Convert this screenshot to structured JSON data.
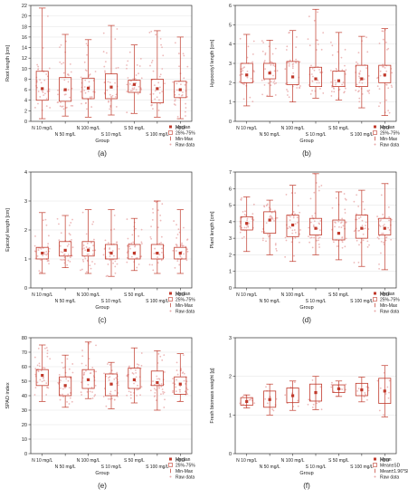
{
  "figure": {
    "colors": {
      "box": "#c0392b",
      "raw": "#e8a8a8",
      "axis": "#333333",
      "grid": "#e6e6e6",
      "text": "#222222"
    }
  },
  "chart_data": [
    {
      "type": "boxplot",
      "panel_label": "(a)",
      "ylabel": "Root length [cm]",
      "xlabel": "Group",
      "ylim": [
        0,
        22
      ],
      "yticks": [
        0,
        2,
        4,
        6,
        8,
        10,
        12,
        14,
        16,
        18,
        20,
        22
      ],
      "categories": [
        "N 10 mg/L",
        "N 50 mg/L",
        "N 100 mg/L",
        "S 10 mg/L",
        "S 50 mg/L",
        "S 100 mg/L",
        "H2O"
      ],
      "legend": [
        "Median",
        "25%-75%",
        "Min-Max",
        "Raw data"
      ],
      "stats": [
        {
          "min": 0.5,
          "q1": 4.0,
          "median": 6.2,
          "q3": 9.5,
          "max": 21.5
        },
        {
          "min": 1.0,
          "q1": 3.8,
          "median": 6.0,
          "q3": 8.3,
          "max": 16.5
        },
        {
          "min": 0.8,
          "q1": 4.3,
          "median": 6.3,
          "q3": 8.2,
          "max": 15.5
        },
        {
          "min": 1.2,
          "q1": 4.3,
          "median": 6.5,
          "q3": 9.0,
          "max": 18.2
        },
        {
          "min": 1.5,
          "q1": 5.5,
          "median": 7.0,
          "q3": 7.8,
          "max": 14.5
        },
        {
          "min": 0.8,
          "q1": 3.5,
          "median": 6.2,
          "q3": 8.0,
          "max": 17.2
        },
        {
          "min": 0.5,
          "q1": 4.5,
          "median": 6.0,
          "q3": 7.6,
          "max": 16.0
        }
      ]
    },
    {
      "type": "boxplot",
      "panel_label": "(b)",
      "ylabel": "Hypocotyl length [cm]",
      "xlabel": "Group",
      "ylim": [
        0,
        6
      ],
      "yticks": [
        0,
        1,
        2,
        3,
        4,
        5,
        6
      ],
      "categories": [
        "N 10 mg/L",
        "N 50 mg/L",
        "N 100 mg/L",
        "S 10 mg/L",
        "S 50 mg/L",
        "S 100 mg/L",
        "H2O"
      ],
      "legend": [
        "Median",
        "25%-75%",
        "Min-Max",
        "Raw data"
      ],
      "stats": [
        {
          "min": 0.8,
          "q1": 2.0,
          "median": 2.4,
          "q3": 3.0,
          "max": 4.5
        },
        {
          "min": 1.3,
          "q1": 2.2,
          "median": 2.5,
          "q3": 3.0,
          "max": 4.2
        },
        {
          "min": 1.0,
          "q1": 1.9,
          "median": 2.3,
          "q3": 3.1,
          "max": 4.7
        },
        {
          "min": 1.2,
          "q1": 1.8,
          "median": 2.2,
          "q3": 2.8,
          "max": 5.8
        },
        {
          "min": 1.1,
          "q1": 1.8,
          "median": 2.1,
          "q3": 2.6,
          "max": 4.6
        },
        {
          "min": 0.7,
          "q1": 1.8,
          "median": 2.2,
          "q3": 2.9,
          "max": 4.4
        },
        {
          "min": 0.3,
          "q1": 2.0,
          "median": 2.4,
          "q3": 2.9,
          "max": 4.8
        }
      ]
    },
    {
      "type": "boxplot",
      "panel_label": "(c)",
      "ylabel": "Epicotyl length [cm]",
      "xlabel": "Group",
      "ylim": [
        0,
        4
      ],
      "yticks": [
        0,
        1,
        2,
        3,
        4
      ],
      "categories": [
        "N 10 mg/L",
        "N 50 mg/L",
        "N 100 mg/L",
        "S 10 mg/L",
        "S 50 mg/L",
        "S 100 mg/L",
        "H2O"
      ],
      "legend": [
        "Median",
        "25%-75%",
        "Min-Max",
        "Raw data"
      ],
      "stats": [
        {
          "min": 0.5,
          "q1": 1.0,
          "median": 1.2,
          "q3": 1.4,
          "max": 2.6
        },
        {
          "min": 0.7,
          "q1": 1.1,
          "median": 1.3,
          "q3": 1.6,
          "max": 2.5
        },
        {
          "min": 0.5,
          "q1": 1.1,
          "median": 1.3,
          "q3": 1.6,
          "max": 2.7
        },
        {
          "min": 0.4,
          "q1": 1.0,
          "median": 1.2,
          "q3": 1.5,
          "max": 2.7
        },
        {
          "min": 0.6,
          "q1": 1.0,
          "median": 1.2,
          "q3": 1.5,
          "max": 2.4
        },
        {
          "min": 0.5,
          "q1": 1.0,
          "median": 1.2,
          "q3": 1.5,
          "max": 3.0
        },
        {
          "min": 0.5,
          "q1": 1.0,
          "median": 1.2,
          "q3": 1.4,
          "max": 2.7
        }
      ]
    },
    {
      "type": "boxplot",
      "panel_label": "(d)",
      "ylabel": "Plant length [cm]",
      "xlabel": "Group",
      "ylim": [
        0,
        7
      ],
      "yticks": [
        0,
        1,
        2,
        3,
        4,
        5,
        6,
        7
      ],
      "categories": [
        "N 10 mg/L",
        "N 50 mg/L",
        "N 100 mg/L",
        "S 10 mg/L",
        "S 50 mg/L",
        "S 100 mg/L",
        "H2O"
      ],
      "legend": [
        "Median",
        "25%-75%",
        "Min-Max",
        "Raw data"
      ],
      "stats": [
        {
          "min": 2.2,
          "q1": 3.5,
          "median": 3.9,
          "q3": 4.3,
          "max": 5.5
        },
        {
          "min": 2.0,
          "q1": 3.3,
          "median": 4.1,
          "q3": 4.6,
          "max": 5.3
        },
        {
          "min": 1.6,
          "q1": 3.1,
          "median": 3.8,
          "q3": 4.4,
          "max": 6.2
        },
        {
          "min": 2.0,
          "q1": 3.2,
          "median": 3.6,
          "q3": 4.2,
          "max": 6.9
        },
        {
          "min": 1.7,
          "q1": 2.9,
          "median": 3.3,
          "q3": 4.1,
          "max": 5.8
        },
        {
          "min": 1.3,
          "q1": 3.0,
          "median": 3.6,
          "q3": 4.4,
          "max": 5.9
        },
        {
          "min": 1.1,
          "q1": 3.2,
          "median": 3.6,
          "q3": 4.2,
          "max": 6.3
        }
      ]
    },
    {
      "type": "boxplot",
      "panel_label": "(e)",
      "ylabel": "SPAD index",
      "xlabel": "Group",
      "ylim": [
        0,
        80
      ],
      "yticks": [
        0,
        10,
        20,
        30,
        40,
        50,
        60,
        70,
        80
      ],
      "categories": [
        "N 10 mg/L",
        "N 50 mg/L",
        "N 100 mg/L",
        "S 10 mg/L",
        "S 50 mg/L",
        "S 100 mg/L",
        "H2O"
      ],
      "legend": [
        "Median",
        "25%-75%",
        "Min-Max",
        "Raw data"
      ],
      "stats": [
        {
          "min": 36,
          "q1": 47,
          "median": 54,
          "q3": 58,
          "max": 75
        },
        {
          "min": 32,
          "q1": 40,
          "median": 47,
          "q3": 53,
          "max": 68
        },
        {
          "min": 38,
          "q1": 45,
          "median": 51,
          "q3": 58,
          "max": 77
        },
        {
          "min": 31,
          "q1": 40,
          "median": 48,
          "q3": 55,
          "max": 63
        },
        {
          "min": 35,
          "q1": 45,
          "median": 51,
          "q3": 59,
          "max": 73
        },
        {
          "min": 30,
          "q1": 47,
          "median": 49,
          "q3": 57,
          "max": 71
        },
        {
          "min": 36,
          "q1": 41,
          "median": 48,
          "q3": 53,
          "max": 69
        }
      ]
    },
    {
      "type": "meanplot",
      "panel_label": "(f)",
      "ylabel": "Fresh biomass weight [g]",
      "xlabel": "Group",
      "ylim": [
        0,
        3
      ],
      "yticks": [
        0,
        1,
        2,
        3
      ],
      "categories": [
        "N 10 mg/L",
        "N 50 mg/L",
        "N 100 mg/L",
        "S 10 mg/L",
        "S 50 mg/L",
        "S 100 mg/L",
        "H2O"
      ],
      "legend": [
        "Mean",
        "Mean±SD",
        "Mean±1.96*SD",
        "Raw data"
      ],
      "stats": [
        {
          "mean": 1.35,
          "sd_low": 1.25,
          "sd_high": 1.45,
          "ci_low": 1.18,
          "ci_high": 1.52
        },
        {
          "mean": 1.4,
          "sd_low": 1.2,
          "sd_high": 1.62,
          "ci_low": 1.0,
          "ci_high": 1.8
        },
        {
          "mean": 1.5,
          "sd_low": 1.32,
          "sd_high": 1.7,
          "ci_low": 1.12,
          "ci_high": 1.88
        },
        {
          "mean": 1.58,
          "sd_low": 1.36,
          "sd_high": 1.8,
          "ci_low": 1.14,
          "ci_high": 2.0
        },
        {
          "mean": 1.68,
          "sd_low": 1.58,
          "sd_high": 1.78,
          "ci_low": 1.48,
          "ci_high": 1.88
        },
        {
          "mean": 1.65,
          "sd_low": 1.5,
          "sd_high": 1.82,
          "ci_low": 1.34,
          "ci_high": 1.98
        },
        {
          "mean": 1.62,
          "sd_low": 1.3,
          "sd_high": 1.95,
          "ci_low": 0.95,
          "ci_high": 2.28
        }
      ]
    }
  ]
}
